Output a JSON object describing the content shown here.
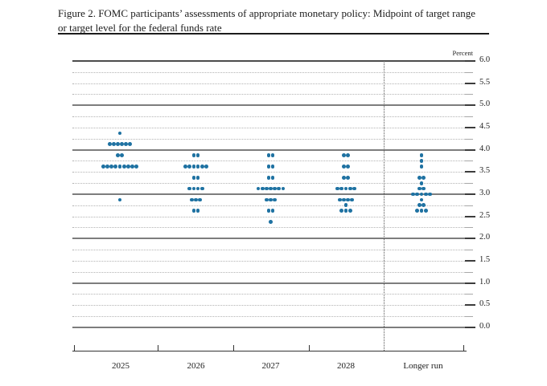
{
  "figure": {
    "title_line1": "Figure 2. FOMC participants’ assessments of appropriate monetary policy: Midpoint of target range",
    "title_line2": "or target level for the federal funds rate"
  },
  "chart_data": {
    "type": "scatter",
    "subtype": "fomc-dot-plot",
    "title": "Figure 2. FOMC participants’ assessments of appropriate monetary policy: Midpoint of target range or target level for the federal funds rate",
    "unit_label": "Percent",
    "categories": [
      "2025",
      "2026",
      "2027",
      "2028",
      "Longer run"
    ],
    "separator_before_category": "Longer run",
    "y_axis": {
      "min": 0.0,
      "max": 6.0,
      "label_step": 0.5,
      "minor_tick_step": 0.25,
      "solid_gridline_step": 1.0,
      "grid": true,
      "tick_labels": [
        "6.0",
        "5.5",
        "5.0",
        "4.5",
        "4.0",
        "3.5",
        "3.0",
        "2.5",
        "2.0",
        "1.5",
        "1.0",
        "0.5",
        "0.0"
      ]
    },
    "series": [
      {
        "category": "2025",
        "dots": [
          {
            "rate": 4.375,
            "count": 1
          },
          {
            "rate": 4.125,
            "count": 6
          },
          {
            "rate": 3.875,
            "count": 2
          },
          {
            "rate": 3.625,
            "count": 9
          },
          {
            "rate": 2.875,
            "count": 1
          }
        ]
      },
      {
        "category": "2026",
        "dots": [
          {
            "rate": 3.875,
            "count": 2
          },
          {
            "rate": 3.625,
            "count": 6
          },
          {
            "rate": 3.375,
            "count": 2
          },
          {
            "rate": 3.125,
            "count": 4
          },
          {
            "rate": 2.875,
            "count": 3
          },
          {
            "rate": 2.625,
            "count": 2
          }
        ]
      },
      {
        "category": "2027",
        "dots": [
          {
            "rate": 3.875,
            "count": 2
          },
          {
            "rate": 3.625,
            "count": 2
          },
          {
            "rate": 3.375,
            "count": 2
          },
          {
            "rate": 3.125,
            "count": 7
          },
          {
            "rate": 2.875,
            "count": 3
          },
          {
            "rate": 2.625,
            "count": 2
          },
          {
            "rate": 2.375,
            "count": 1
          }
        ]
      },
      {
        "category": "2028",
        "dots": [
          {
            "rate": 3.875,
            "count": 2
          },
          {
            "rate": 3.625,
            "count": 2
          },
          {
            "rate": 3.375,
            "count": 2
          },
          {
            "rate": 3.125,
            "count": 5
          },
          {
            "rate": 2.875,
            "count": 4
          },
          {
            "rate": 2.75,
            "count": 1
          },
          {
            "rate": 2.625,
            "count": 3
          }
        ]
      },
      {
        "category": "Longer run",
        "dots": [
          {
            "rate": 3.875,
            "count": 1
          },
          {
            "rate": 3.75,
            "count": 1
          },
          {
            "rate": 3.625,
            "count": 1
          },
          {
            "rate": 3.375,
            "count": 2
          },
          {
            "rate": 3.25,
            "count": 1
          },
          {
            "rate": 3.125,
            "count": 2
          },
          {
            "rate": 3.0,
            "count": 5
          },
          {
            "rate": 2.875,
            "count": 1
          },
          {
            "rate": 2.75,
            "count": 2
          },
          {
            "rate": 2.625,
            "count": 3
          }
        ]
      }
    ],
    "colors": {
      "dot": "#1f72a2",
      "solid_gridline": "#7d7d7d",
      "top_gridline": "#4c4c4c",
      "dotted_gridline": "#b3b3b3",
      "axis": "#333333",
      "text": "#1c1c1c"
    }
  }
}
